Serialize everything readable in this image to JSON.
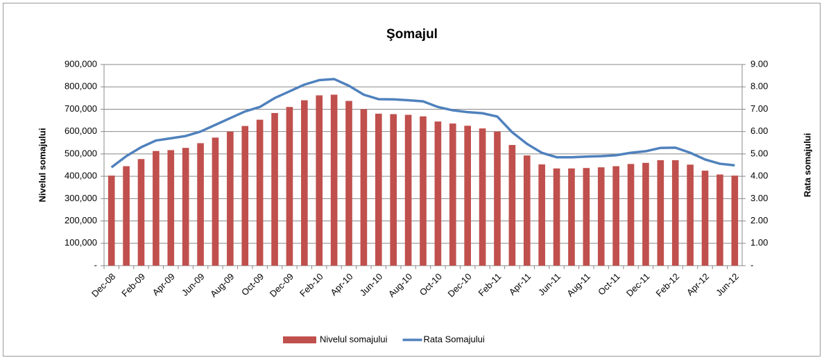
{
  "chart_data": {
    "type": "bar_line",
    "title": "Şomajul",
    "y_label": "Nivelul somajului",
    "y2_label": "Rata somajului",
    "categories": [
      "Dec-08",
      null,
      "Feb-09",
      null,
      "Apr-09",
      null,
      "Jun-09",
      null,
      "Aug-09",
      null,
      "Oct-09",
      null,
      "Dec-09",
      null,
      "Feb-10",
      null,
      "Apr-10",
      null,
      "Jun-10",
      null,
      "Aug-10",
      null,
      "Oct-10",
      null,
      "Dec-10",
      null,
      "Feb-11",
      null,
      "Apr-11",
      null,
      "Jun-11",
      null,
      "Aug-11",
      null,
      "Oct-11",
      null,
      "Dec-11",
      null,
      "Feb-12",
      null,
      "Apr-12",
      null,
      "Jun-12"
    ],
    "series": [
      {
        "name": "Nivelul somajului",
        "type": "bar",
        "color": "#c0504d",
        "values": [
          403000,
          445000,
          477000,
          513000,
          517000,
          527000,
          548000,
          573000,
          600000,
          625000,
          653000,
          683000,
          710000,
          740000,
          762000,
          765000,
          737000,
          700000,
          680000,
          678000,
          675000,
          668000,
          645000,
          636000,
          626000,
          614000,
          600000,
          540000,
          493000,
          453000,
          435000,
          435000,
          437000,
          440000,
          445000,
          455000,
          460000,
          472000,
          472000,
          452000,
          425000,
          408000,
          403000
        ]
      },
      {
        "name": "Rata Somajului",
        "type": "line",
        "axis": "y2",
        "color": "#4f81bd",
        "values": [
          4.4,
          4.9,
          5.3,
          5.6,
          5.7,
          5.8,
          6.0,
          6.3,
          6.6,
          6.9,
          7.1,
          7.5,
          7.8,
          8.1,
          8.3,
          8.35,
          8.05,
          7.65,
          7.45,
          7.44,
          7.4,
          7.35,
          7.1,
          6.95,
          6.87,
          6.82,
          6.67,
          5.97,
          5.45,
          5.05,
          4.85,
          4.85,
          4.88,
          4.9,
          4.94,
          5.05,
          5.12,
          5.27,
          5.28,
          5.05,
          4.75,
          4.56,
          4.49
        ]
      }
    ],
    "ylim": [
      0,
      900000
    ],
    "yticks": [
      {
        "value": 0,
        "label": "-"
      },
      {
        "value": 100000,
        "label": "100,000"
      },
      {
        "value": 200000,
        "label": "200,000"
      },
      {
        "value": 300000,
        "label": "300,000"
      },
      {
        "value": 400000,
        "label": "400,000"
      },
      {
        "value": 500000,
        "label": "500,000"
      },
      {
        "value": 600000,
        "label": "600,000"
      },
      {
        "value": 700000,
        "label": "700,000"
      },
      {
        "value": 800000,
        "label": "800,000"
      },
      {
        "value": 900000,
        "label": "900,000"
      }
    ],
    "y2lim": [
      0,
      9
    ],
    "y2ticks": [
      {
        "value": 0,
        "label": "-"
      },
      {
        "value": 1,
        "label": "1.00"
      },
      {
        "value": 2,
        "label": "2.00"
      },
      {
        "value": 3,
        "label": "3.00"
      },
      {
        "value": 4,
        "label": "4.00"
      },
      {
        "value": 5,
        "label": "5.00"
      },
      {
        "value": 6,
        "label": "6.00"
      },
      {
        "value": 7,
        "label": "7.00"
      },
      {
        "value": 8,
        "label": "8.00"
      },
      {
        "value": 9,
        "label": "9.00"
      }
    ],
    "grid": true,
    "legend": "bottom"
  }
}
